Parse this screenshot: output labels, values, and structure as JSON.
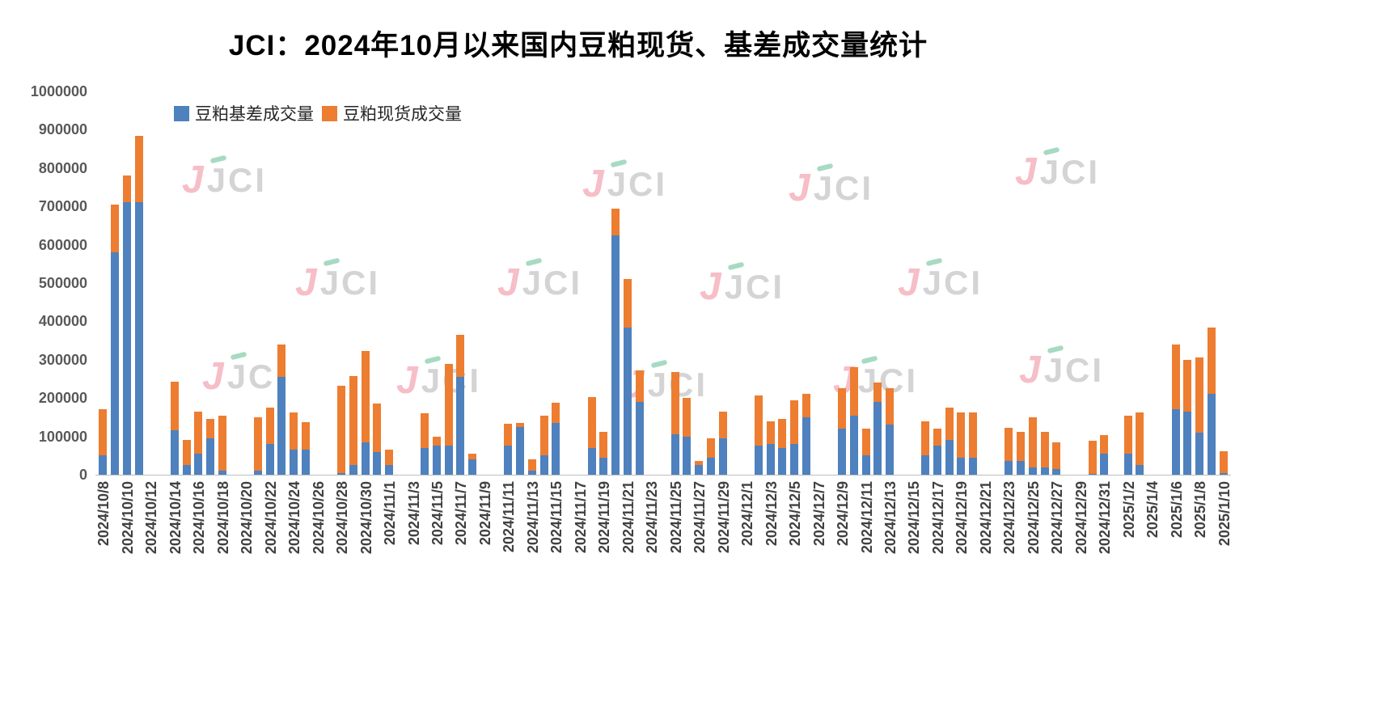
{
  "title": "JCI：2024年10月以来国内豆粕现货、基差成交量统计",
  "watermark": {
    "j": "J",
    "text": "JCI"
  },
  "chart_data": {
    "type": "bar",
    "stacked": true,
    "title": "JCI：2024年10月以来国内豆粕现货、基差成交量统计",
    "xlabel": "",
    "ylabel": "",
    "ylim": [
      0,
      1000000
    ],
    "ytick_step": 100000,
    "x_start": "2024/10/8",
    "x_end": "2025/1/10",
    "x_tick_interval_days": 2,
    "grid": false,
    "legend_position": "top-left",
    "series": [
      {
        "name": "豆粕基差成交量",
        "color": "#4E81BD",
        "key": "basis"
      },
      {
        "name": "豆粕现货成交量",
        "color": "#ED7D31",
        "key": "spot"
      }
    ],
    "points": [
      {
        "date": "2024/10/8",
        "basis": 50000,
        "spot": 120000
      },
      {
        "date": "2024/10/9",
        "basis": 580000,
        "spot": 125000
      },
      {
        "date": "2024/10/10",
        "basis": 710000,
        "spot": 70000
      },
      {
        "date": "2024/10/11",
        "basis": 710000,
        "spot": 175000
      },
      {
        "date": "2024/10/14",
        "basis": 115000,
        "spot": 128000
      },
      {
        "date": "2024/10/15",
        "basis": 25000,
        "spot": 65000
      },
      {
        "date": "2024/10/16",
        "basis": 55000,
        "spot": 110000
      },
      {
        "date": "2024/10/17",
        "basis": 95000,
        "spot": 50000
      },
      {
        "date": "2024/10/18",
        "basis": 10000,
        "spot": 145000
      },
      {
        "date": "2024/10/21",
        "basis": 10000,
        "spot": 140000
      },
      {
        "date": "2024/10/22",
        "basis": 80000,
        "spot": 95000
      },
      {
        "date": "2024/10/23",
        "basis": 255000,
        "spot": 85000
      },
      {
        "date": "2024/10/24",
        "basis": 65000,
        "spot": 98000
      },
      {
        "date": "2024/10/25",
        "basis": 65000,
        "spot": 73000
      },
      {
        "date": "2024/10/28",
        "basis": 5000,
        "spot": 227000
      },
      {
        "date": "2024/10/29",
        "basis": 25000,
        "spot": 233000
      },
      {
        "date": "2024/10/30",
        "basis": 85000,
        "spot": 237000
      },
      {
        "date": "2024/10/31",
        "basis": 60000,
        "spot": 125000
      },
      {
        "date": "2024/11/1",
        "basis": 25000,
        "spot": 40000
      },
      {
        "date": "2024/11/4",
        "basis": 70000,
        "spot": 90000
      },
      {
        "date": "2024/11/5",
        "basis": 75000,
        "spot": 25000
      },
      {
        "date": "2024/11/6",
        "basis": 75000,
        "spot": 215000
      },
      {
        "date": "2024/11/7",
        "basis": 255000,
        "spot": 110000
      },
      {
        "date": "2024/11/8",
        "basis": 40000,
        "spot": 15000
      },
      {
        "date": "2024/11/11",
        "basis": 75000,
        "spot": 57000
      },
      {
        "date": "2024/11/12",
        "basis": 125000,
        "spot": 10000
      },
      {
        "date": "2024/11/13",
        "basis": 10000,
        "spot": 30000
      },
      {
        "date": "2024/11/14",
        "basis": 50000,
        "spot": 105000
      },
      {
        "date": "2024/11/15",
        "basis": 135000,
        "spot": 53000
      },
      {
        "date": "2024/11/18",
        "basis": 70000,
        "spot": 132000
      },
      {
        "date": "2024/11/19",
        "basis": 45000,
        "spot": 67000
      },
      {
        "date": "2024/11/20",
        "basis": 625000,
        "spot": 70000
      },
      {
        "date": "2024/11/21",
        "basis": 385000,
        "spot": 125000
      },
      {
        "date": "2024/11/22",
        "basis": 190000,
        "spot": 82000
      },
      {
        "date": "2024/11/25",
        "basis": 105000,
        "spot": 163000
      },
      {
        "date": "2024/11/26",
        "basis": 100000,
        "spot": 100000
      },
      {
        "date": "2024/11/27",
        "basis": 25000,
        "spot": 10000
      },
      {
        "date": "2024/11/28",
        "basis": 45000,
        "spot": 50000
      },
      {
        "date": "2024/11/29",
        "basis": 95000,
        "spot": 70000
      },
      {
        "date": "2024/12/2",
        "basis": 75000,
        "spot": 132000
      },
      {
        "date": "2024/12/3",
        "basis": 80000,
        "spot": 60000
      },
      {
        "date": "2024/12/4",
        "basis": 70000,
        "spot": 75000
      },
      {
        "date": "2024/12/5",
        "basis": 80000,
        "spot": 115000
      },
      {
        "date": "2024/12/6",
        "basis": 150000,
        "spot": 60000
      },
      {
        "date": "2024/12/9",
        "basis": 120000,
        "spot": 105000
      },
      {
        "date": "2024/12/10",
        "basis": 155000,
        "spot": 125000
      },
      {
        "date": "2024/12/11",
        "basis": 50000,
        "spot": 70000
      },
      {
        "date": "2024/12/12",
        "basis": 190000,
        "spot": 50000
      },
      {
        "date": "2024/12/13",
        "basis": 130000,
        "spot": 95000
      },
      {
        "date": "2024/12/16",
        "basis": 50000,
        "spot": 90000
      },
      {
        "date": "2024/12/17",
        "basis": 75000,
        "spot": 45000
      },
      {
        "date": "2024/12/18",
        "basis": 90000,
        "spot": 85000
      },
      {
        "date": "2024/12/19",
        "basis": 45000,
        "spot": 117000
      },
      {
        "date": "2024/12/20",
        "basis": 45000,
        "spot": 117000
      },
      {
        "date": "2024/12/23",
        "basis": 35000,
        "spot": 87000
      },
      {
        "date": "2024/12/24",
        "basis": 35000,
        "spot": 77000
      },
      {
        "date": "2024/12/25",
        "basis": 20000,
        "spot": 130000
      },
      {
        "date": "2024/12/26",
        "basis": 20000,
        "spot": 92000
      },
      {
        "date": "2024/12/27",
        "basis": 15000,
        "spot": 70000
      },
      {
        "date": "2024/12/30",
        "basis": 2000,
        "spot": 86000
      },
      {
        "date": "2024/12/31",
        "basis": 55000,
        "spot": 48000
      },
      {
        "date": "2025/1/2",
        "basis": 55000,
        "spot": 100000
      },
      {
        "date": "2025/1/3",
        "basis": 25000,
        "spot": 138000
      },
      {
        "date": "2025/1/6",
        "basis": 170000,
        "spot": 170000
      },
      {
        "date": "2025/1/7",
        "basis": 165000,
        "spot": 135000
      },
      {
        "date": "2025/1/8",
        "basis": 110000,
        "spot": 195000
      },
      {
        "date": "2025/1/9",
        "basis": 210000,
        "spot": 175000
      },
      {
        "date": "2025/1/10",
        "basis": 5000,
        "spot": 57000
      }
    ]
  }
}
